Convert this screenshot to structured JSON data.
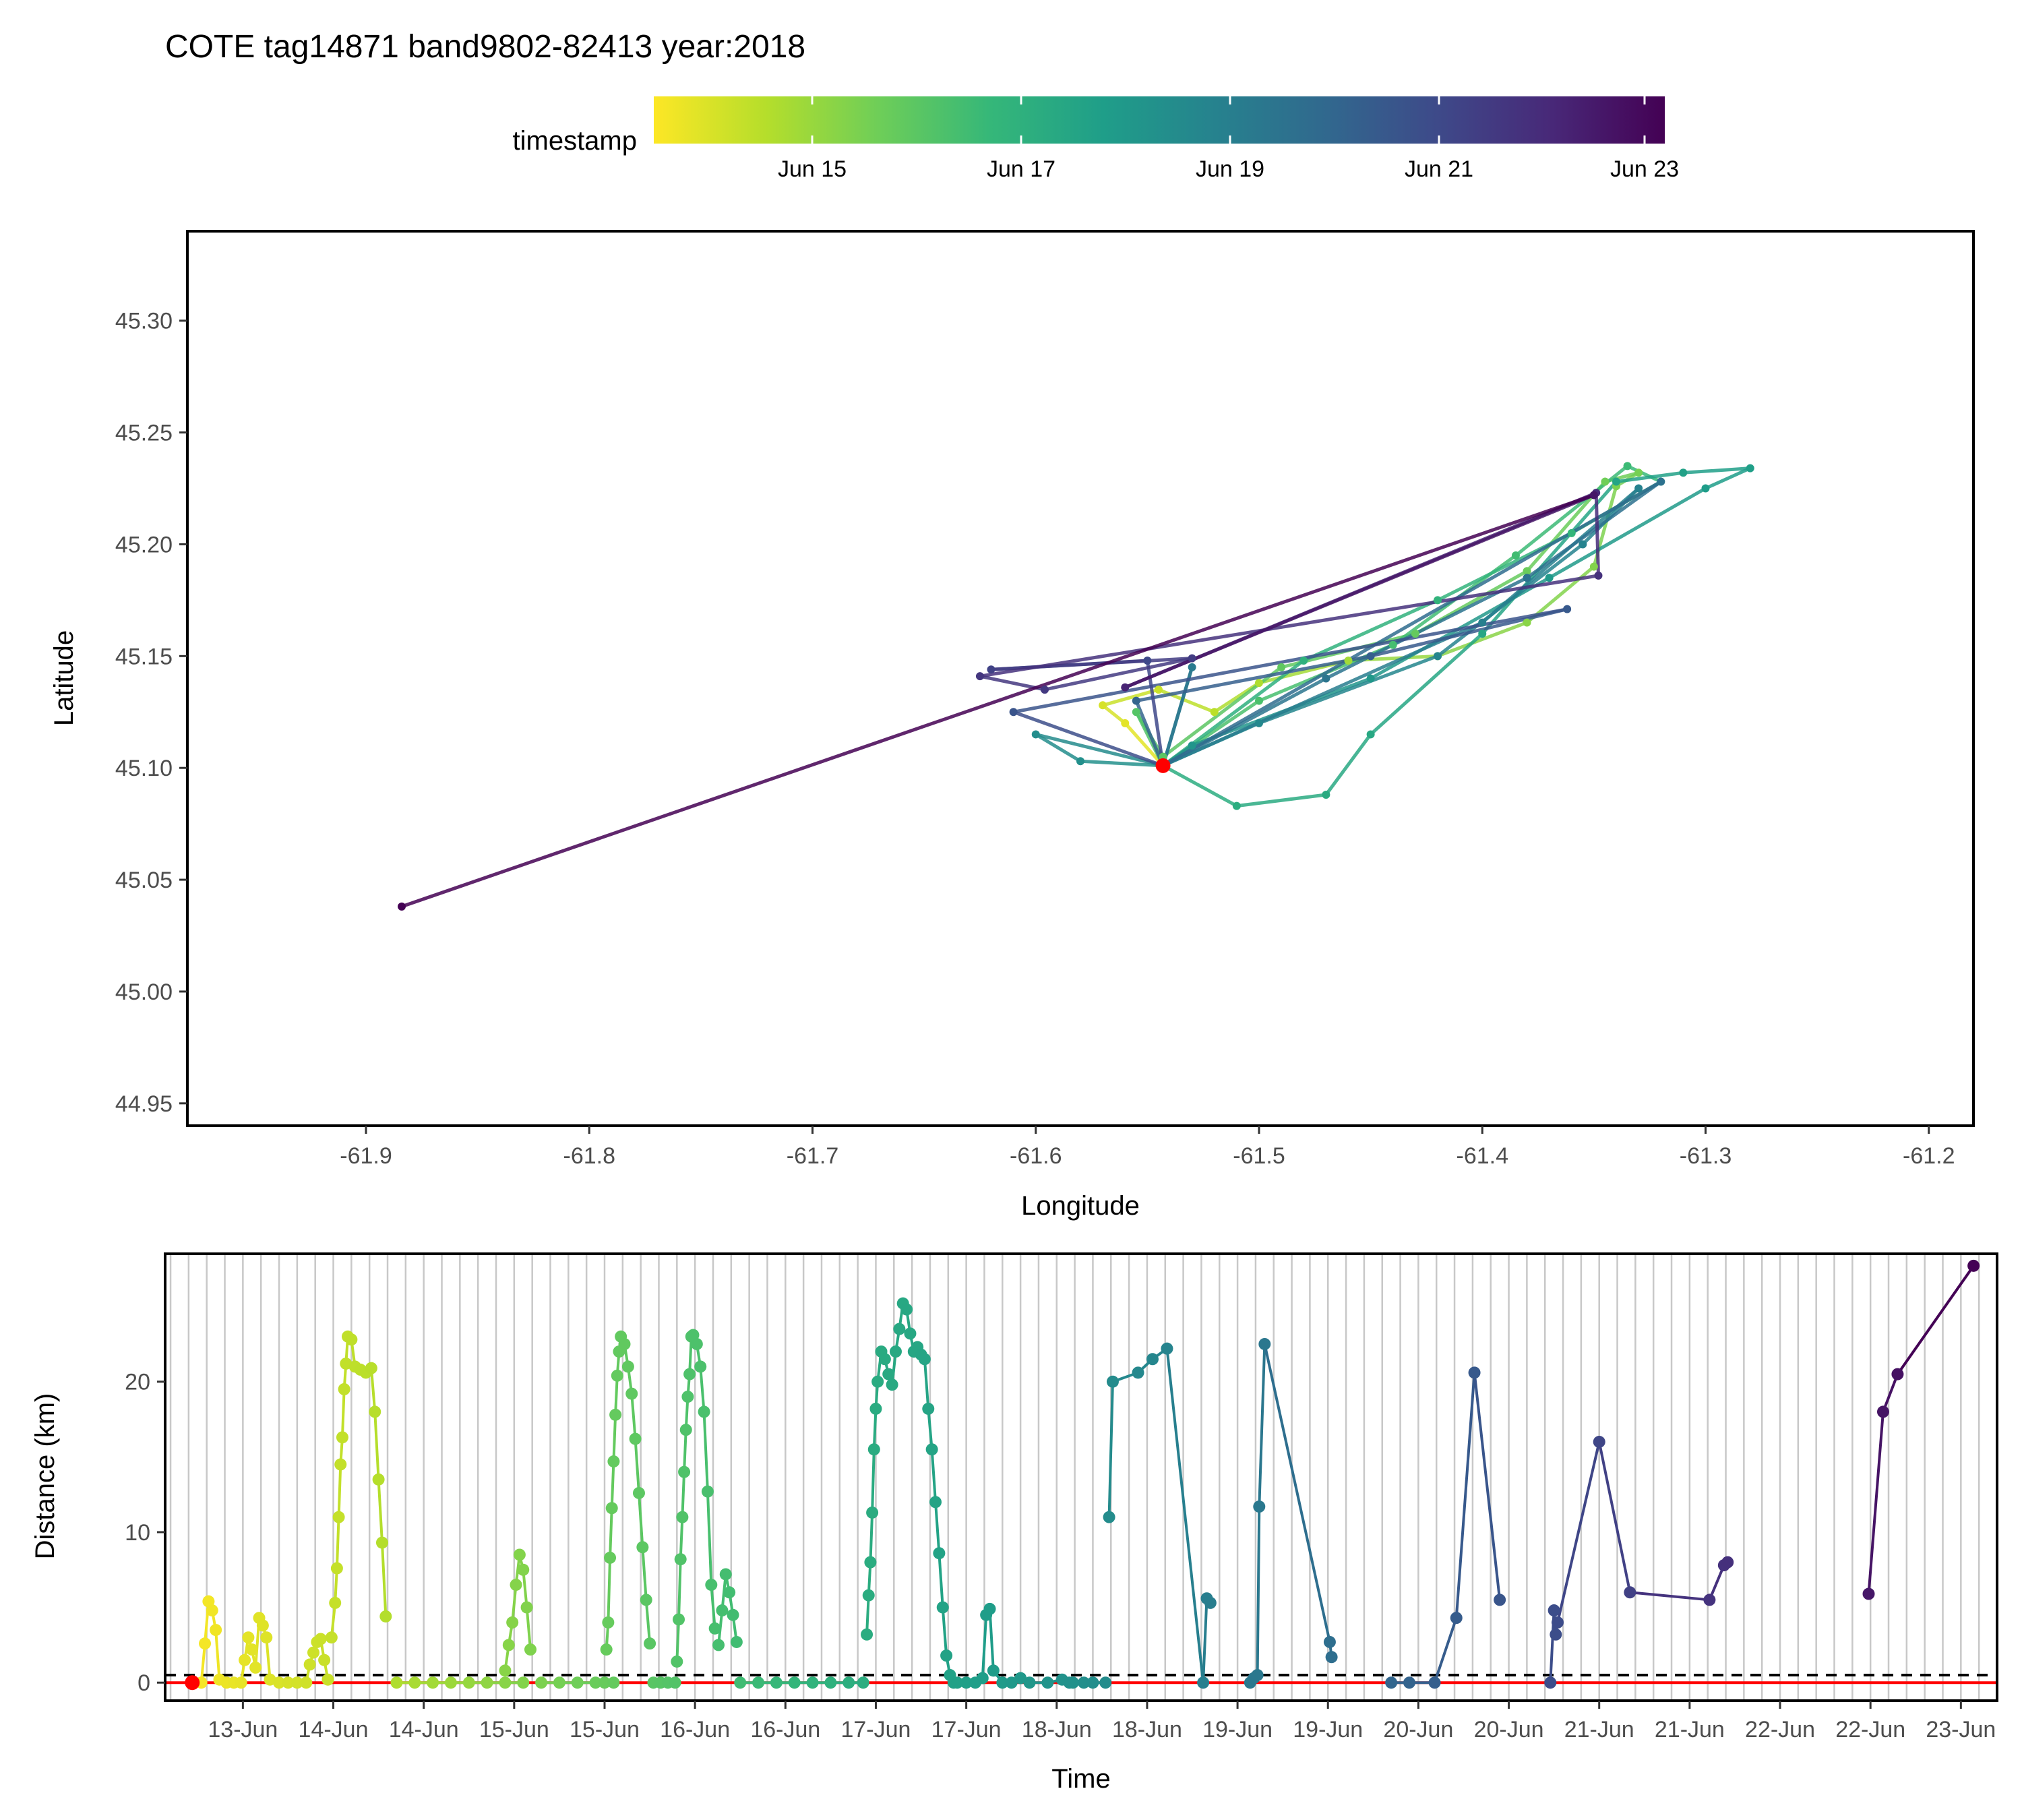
{
  "title": "COTE tag14871 band9802-82413 year:2018",
  "legend": {
    "title": "timestamp",
    "ticks": [
      "Jun 15",
      "Jun 17",
      "Jun 19",
      "Jun 21",
      "Jun 23"
    ],
    "palette": [
      "#fde725",
      "#b5de2b",
      "#6ece58",
      "#35b779",
      "#1f9e89",
      "#26828e",
      "#31688e",
      "#3e4989",
      "#482878",
      "#440154"
    ]
  },
  "chart_data": [
    {
      "type": "line",
      "subtype": "track map",
      "xlabel": "Longitude",
      "ylabel": "Latitude",
      "xlim": [
        -61.98,
        -61.18
      ],
      "ylim": [
        44.94,
        45.34
      ],
      "x_ticks": [
        "-61.9",
        "-61.8",
        "-61.7",
        "-61.6",
        "-61.5",
        "-61.4",
        "-61.3",
        "-61.2"
      ],
      "y_ticks": [
        "44.95",
        "45.00",
        "45.05",
        "45.10",
        "45.15",
        "45.20",
        "45.25",
        "45.30"
      ],
      "colony_point": {
        "x": -61.543,
        "y": 45.101,
        "color": "#ff0000"
      },
      "track": [
        {
          "x": -61.543,
          "y": 45.101,
          "t": 0.0
        },
        {
          "x": -61.56,
          "y": 45.12,
          "t": 0.04
        },
        {
          "x": -61.57,
          "y": 45.128,
          "t": 0.06
        },
        {
          "x": -61.545,
          "y": 45.135,
          "t": 0.08
        },
        {
          "x": -61.52,
          "y": 45.125,
          "t": 0.1
        },
        {
          "x": -61.5,
          "y": 45.138,
          "t": 0.12
        },
        {
          "x": -61.46,
          "y": 45.148,
          "t": 0.14
        },
        {
          "x": -61.42,
          "y": 45.15,
          "t": 0.16
        },
        {
          "x": -61.38,
          "y": 45.165,
          "t": 0.18
        },
        {
          "x": -61.35,
          "y": 45.19,
          "t": 0.19
        },
        {
          "x": -61.34,
          "y": 45.226,
          "t": 0.2
        },
        {
          "x": -61.33,
          "y": 45.232,
          "t": 0.21
        },
        {
          "x": -61.345,
          "y": 45.228,
          "t": 0.22
        },
        {
          "x": -61.38,
          "y": 45.188,
          "t": 0.23
        },
        {
          "x": -61.43,
          "y": 45.16,
          "t": 0.24
        },
        {
          "x": -61.49,
          "y": 45.145,
          "t": 0.25
        },
        {
          "x": -61.543,
          "y": 45.105,
          "t": 0.26
        },
        {
          "x": -61.555,
          "y": 45.125,
          "t": 0.27
        },
        {
          "x": -61.543,
          "y": 45.101,
          "t": 0.28
        },
        {
          "x": -61.5,
          "y": 45.13,
          "t": 0.29
        },
        {
          "x": -61.44,
          "y": 45.155,
          "t": 0.3
        },
        {
          "x": -61.385,
          "y": 45.195,
          "t": 0.31
        },
        {
          "x": -61.335,
          "y": 45.235,
          "t": 0.32
        },
        {
          "x": -61.32,
          "y": 45.228,
          "t": 0.33
        },
        {
          "x": -61.36,
          "y": 45.205,
          "t": 0.34
        },
        {
          "x": -61.42,
          "y": 45.175,
          "t": 0.35
        },
        {
          "x": -61.48,
          "y": 45.148,
          "t": 0.36
        },
        {
          "x": -61.543,
          "y": 45.101,
          "t": 0.37
        },
        {
          "x": -61.51,
          "y": 45.083,
          "t": 0.38
        },
        {
          "x": -61.47,
          "y": 45.088,
          "t": 0.39
        },
        {
          "x": -61.45,
          "y": 45.115,
          "t": 0.4
        },
        {
          "x": -61.4,
          "y": 45.16,
          "t": 0.41
        },
        {
          "x": -61.34,
          "y": 45.228,
          "t": 0.42
        },
        {
          "x": -61.31,
          "y": 45.232,
          "t": 0.43
        },
        {
          "x": -61.28,
          "y": 45.234,
          "t": 0.44
        },
        {
          "x": -61.3,
          "y": 45.225,
          "t": 0.45
        },
        {
          "x": -61.37,
          "y": 45.185,
          "t": 0.46
        },
        {
          "x": -61.45,
          "y": 45.14,
          "t": 0.47
        },
        {
          "x": -61.53,
          "y": 45.11,
          "t": 0.48
        },
        {
          "x": -61.543,
          "y": 45.101,
          "t": 0.49
        },
        {
          "x": -61.58,
          "y": 45.103,
          "t": 0.5
        },
        {
          "x": -61.6,
          "y": 45.115,
          "t": 0.51
        },
        {
          "x": -61.543,
          "y": 45.101,
          "t": 0.52
        },
        {
          "x": -61.5,
          "y": 45.12,
          "t": 0.53
        },
        {
          "x": -61.42,
          "y": 45.15,
          "t": 0.54
        },
        {
          "x": -61.355,
          "y": 45.2,
          "t": 0.55
        },
        {
          "x": -61.33,
          "y": 45.225,
          "t": 0.56
        },
        {
          "x": -61.4,
          "y": 45.165,
          "t": 0.57
        },
        {
          "x": -61.543,
          "y": 45.101,
          "t": 0.58
        },
        {
          "x": -61.53,
          "y": 45.145,
          "t": 0.59
        },
        {
          "x": -61.543,
          "y": 45.101,
          "t": 0.6
        },
        {
          "x": -61.47,
          "y": 45.14,
          "t": 0.61
        },
        {
          "x": -61.38,
          "y": 45.185,
          "t": 0.62
        },
        {
          "x": -61.32,
          "y": 45.228,
          "t": 0.63
        },
        {
          "x": -61.543,
          "y": 45.101,
          "t": 0.65
        },
        {
          "x": -61.555,
          "y": 45.13,
          "t": 0.68
        },
        {
          "x": -61.45,
          "y": 45.15,
          "t": 0.7
        },
        {
          "x": -61.362,
          "y": 45.171,
          "t": 0.72
        },
        {
          "x": -61.61,
          "y": 45.125,
          "t": 0.74
        },
        {
          "x": -61.543,
          "y": 45.101,
          "t": 0.76
        },
        {
          "x": -61.55,
          "y": 45.148,
          "t": 0.78
        },
        {
          "x": -61.62,
          "y": 45.144,
          "t": 0.8
        },
        {
          "x": -61.53,
          "y": 45.149,
          "t": 0.82
        },
        {
          "x": -61.596,
          "y": 45.135,
          "t": 0.83
        },
        {
          "x": -61.625,
          "y": 45.141,
          "t": 0.84
        },
        {
          "x": -61.348,
          "y": 45.186,
          "t": 0.86
        },
        {
          "x": -61.349,
          "y": 45.223,
          "t": 0.88
        },
        {
          "x": -61.56,
          "y": 45.136,
          "t": 0.9
        },
        {
          "x": -61.35,
          "y": 45.222,
          "t": 0.94
        },
        {
          "x": -61.884,
          "y": 45.038,
          "t": 1.0
        }
      ]
    },
    {
      "type": "scatter",
      "subtype": "line with points",
      "xlabel": "Time",
      "ylabel": "Distance (km)",
      "ylim": [
        -1.2,
        28.5
      ],
      "y_ticks": [
        0,
        10,
        20
      ],
      "x_ticks": [
        "13-Jun",
        "14-Jun",
        "14-Jun",
        "15-Jun",
        "15-Jun",
        "16-Jun",
        "16-Jun",
        "17-Jun",
        "17-Jun",
        "18-Jun",
        "18-Jun",
        "19-Jun",
        "19-Jun",
        "20-Jun",
        "20-Jun",
        "21-Jun",
        "21-Jun",
        "22-Jun",
        "22-Jun",
        "23-Jun"
      ],
      "x_tick_days": [
        12.85,
        13.35,
        13.85,
        14.35,
        14.85,
        15.35,
        15.85,
        16.35,
        16.85,
        17.35,
        17.85,
        18.35,
        18.85,
        19.35,
        19.85,
        20.35,
        20.85,
        21.35,
        21.85,
        22.35
      ],
      "xlim": [
        12.42,
        22.55
      ],
      "threshold_dashed": 0.5,
      "zero_line_color": "#ff0000",
      "series": [
        {
          "x": [
            12.57,
            12.62,
            12.64,
            12.66,
            12.68,
            12.7,
            12.72,
            12.76,
            12.8,
            12.84,
            12.86,
            12.88,
            12.9,
            12.92,
            12.94,
            12.96,
            12.98,
            13.0,
            13.05,
            13.1,
            13.15,
            13.2,
            13.22,
            13.24,
            13.26,
            13.28,
            13.3,
            13.32
          ],
          "y": [
            0,
            0,
            2.6,
            5.4,
            4.8,
            3.5,
            0.2,
            0,
            0,
            0,
            1.5,
            3.0,
            2.2,
            1.0,
            4.3,
            3.8,
            3.0,
            0.2,
            0,
            0,
            0,
            0,
            1.2,
            2.0,
            2.7,
            2.9,
            1.5,
            0.2
          ]
        },
        {
          "x": [
            13.34,
            13.36,
            13.37,
            13.38,
            13.39,
            13.4,
            13.41,
            13.42,
            13.43,
            13.45,
            13.47,
            13.5,
            13.53,
            13.56,
            13.58,
            13.6,
            13.62,
            13.64
          ],
          "y": [
            3.0,
            5.3,
            7.6,
            11.0,
            14.5,
            16.3,
            19.5,
            21.2,
            23.0,
            22.8,
            21.0,
            20.8,
            20.6,
            20.9,
            18.0,
            13.5,
            9.3,
            4.4
          ]
        },
        {
          "x": [
            13.7,
            13.8,
            13.9,
            14.0,
            14.1,
            14.2,
            14.3,
            14.4
          ],
          "y": [
            0,
            0,
            0,
            0,
            0,
            0,
            0,
            0
          ]
        },
        {
          "x": [
            14.3,
            14.32,
            14.34,
            14.36,
            14.38,
            14.4,
            14.42,
            14.44
          ],
          "y": [
            0.8,
            2.5,
            4.0,
            6.5,
            8.5,
            7.5,
            5.0,
            2.2
          ]
        },
        {
          "x": [
            14.5,
            14.6,
            14.7,
            14.8,
            14.85,
            14.9
          ],
          "y": [
            0,
            0,
            0,
            0,
            0,
            0
          ]
        },
        {
          "x": [
            14.86,
            14.87,
            14.88,
            14.89,
            14.9,
            14.91,
            14.92,
            14.93,
            14.94,
            14.96,
            14.98,
            15.0,
            15.02,
            15.04,
            15.06,
            15.08,
            15.1
          ],
          "y": [
            2.2,
            4.0,
            8.3,
            11.6,
            14.7,
            17.8,
            20.4,
            22.0,
            23.0,
            22.5,
            21.0,
            19.2,
            16.2,
            12.6,
            9.0,
            5.5,
            2.6
          ]
        },
        {
          "x": [
            15.12,
            15.16,
            15.2,
            15.24
          ],
          "y": [
            0,
            0,
            0,
            0
          ]
        },
        {
          "x": [
            15.25,
            15.26,
            15.27,
            15.28,
            15.29,
            15.3,
            15.31,
            15.32,
            15.33,
            15.34,
            15.36,
            15.38,
            15.4,
            15.42,
            15.44,
            15.46
          ],
          "y": [
            1.4,
            4.2,
            8.2,
            11.0,
            14.0,
            16.8,
            19.0,
            20.5,
            23.0,
            23.1,
            22.5,
            21.0,
            18.0,
            12.7,
            6.5,
            3.6
          ]
        },
        {
          "x": [
            15.48,
            15.5,
            15.52,
            15.54,
            15.56,
            15.58
          ],
          "y": [
            2.5,
            4.8,
            7.2,
            6.0,
            4.5,
            2.7
          ]
        },
        {
          "x": [
            15.6,
            15.7,
            15.8,
            15.9,
            16.0,
            16.1,
            16.2,
            16.28
          ],
          "y": [
            0,
            0,
            0,
            0,
            0,
            0,
            0,
            0
          ]
        },
        {
          "x": [
            16.3,
            16.31,
            16.32,
            16.33,
            16.34,
            16.35,
            16.36,
            16.38,
            16.4,
            16.42,
            16.44,
            16.46,
            16.48,
            16.5,
            16.52,
            16.54,
            16.56,
            16.58,
            16.6,
            16.62,
            16.64,
            16.66,
            16.68,
            16.7,
            16.72,
            16.74,
            16.76,
            16.78
          ],
          "y": [
            3.2,
            5.8,
            8.0,
            11.3,
            15.5,
            18.2,
            20.0,
            22.0,
            21.5,
            20.5,
            19.8,
            22.0,
            23.5,
            25.2,
            24.8,
            23.2,
            22.0,
            22.3,
            21.8,
            21.5,
            18.2,
            15.5,
            12.0,
            8.6,
            5.0,
            1.8,
            0.5,
            0
          ]
        },
        {
          "x": [
            16.8,
            16.85,
            16.9,
            16.94,
            16.96,
            16.98,
            17.0,
            17.05,
            17.1,
            17.15
          ],
          "y": [
            0,
            0,
            0,
            0.3,
            4.5,
            4.9,
            0.8,
            0,
            0,
            0.3
          ]
        },
        {
          "x": [
            17.2,
            17.3,
            17.38,
            17.42,
            17.44,
            17.5,
            17.55,
            17.62
          ],
          "y": [
            0,
            0,
            0.2,
            0,
            0,
            0,
            0,
            0
          ]
        },
        {
          "x": [
            17.64,
            17.66,
            17.8,
            17.88,
            17.96,
            18.16,
            18.18,
            18.2
          ],
          "y": [
            11.0,
            20.0,
            20.6,
            21.5,
            22.2,
            0,
            5.6,
            5.3
          ]
        },
        {
          "x": [
            18.42,
            18.44,
            18.46,
            18.47,
            18.5,
            18.86,
            18.87
          ],
          "y": [
            0,
            0.3,
            0.5,
            11.7,
            22.5,
            2.7,
            1.7
          ]
        },
        {
          "x": [
            19.2,
            19.3,
            19.44,
            19.56,
            19.66,
            19.8
          ],
          "y": [
            0,
            0,
            0,
            4.3,
            20.6,
            5.5
          ]
        },
        {
          "x": [
            20.08,
            20.1,
            20.11,
            20.12,
            20.35,
            20.52,
            20.96,
            21.04,
            21.06
          ],
          "y": [
            0,
            4.8,
            3.2,
            4.0,
            16.0,
            6.0,
            5.5,
            7.8,
            8.0
          ]
        },
        {
          "x": [
            21.84,
            21.92,
            22.0,
            22.42
          ],
          "y": [
            5.9,
            18.0,
            20.5,
            27.7
          ]
        }
      ],
      "start_point": {
        "x": 12.57,
        "y": 0,
        "color": "#ff0000"
      }
    }
  ]
}
